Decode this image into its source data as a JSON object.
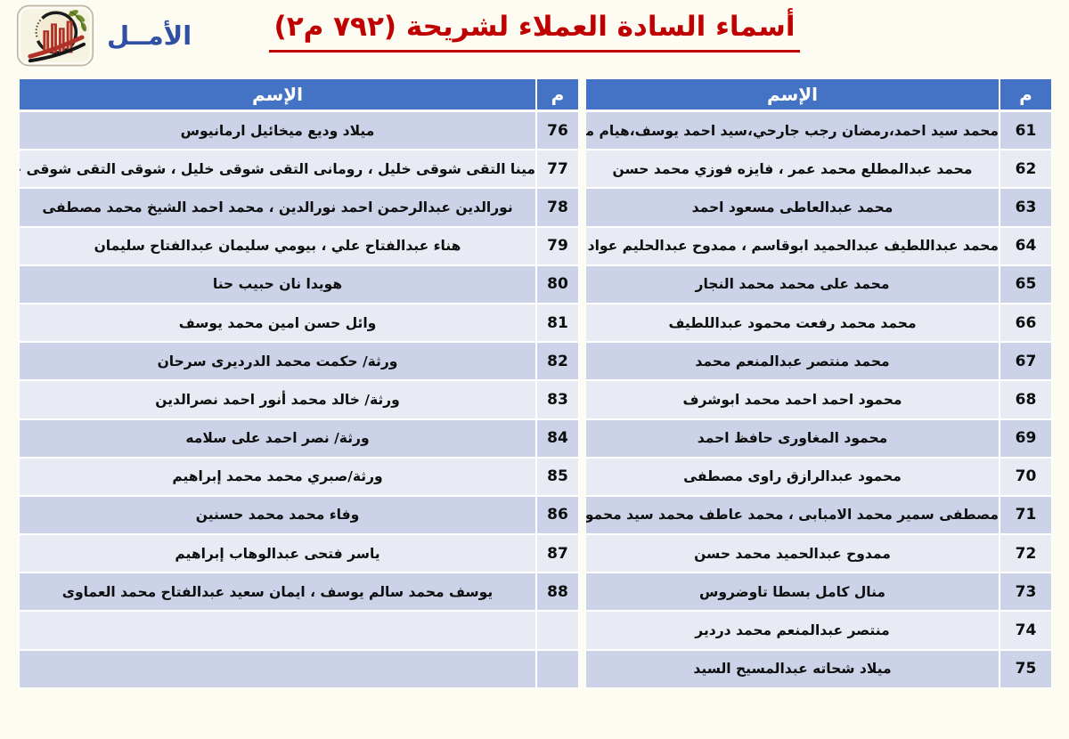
{
  "header": {
    "brand": "الأمــل",
    "title": "أسماء السادة العملاء لشريحة (٧٩٢ م٢)"
  },
  "table_headers": {
    "num": "م",
    "name": "الإسم"
  },
  "colors": {
    "title_red": "#c00000",
    "brand_blue": "#2e4fa3",
    "header_bg": "#4472c4",
    "row_dark": "#ccd3e8",
    "row_light": "#e9ebf4"
  },
  "icons": {
    "logo": "amal-university-logo"
  },
  "first_table": {
    "rows": [
      {
        "num": "61",
        "name": "محمد سيد احمد،رمضان رجب جارحي،سيد احمد يوسف،هيام محمد صلاح"
      },
      {
        "num": "62",
        "name": "محمد عبدالمطلع محمد عمر ، فايزه فوزي محمد حسن"
      },
      {
        "num": "63",
        "name": "محمد عبدالعاطى مسعود احمد"
      },
      {
        "num": "64",
        "name": "محمد عبداللطيف عبدالحميد ابوقاسم ، ممدوح عبدالحليم عواد شرمه"
      },
      {
        "num": "65",
        "name": "محمد على محمد محمد النجار"
      },
      {
        "num": "66",
        "name": "محمد محمد رفعت محمود عبداللطيف"
      },
      {
        "num": "67",
        "name": "محمد منتصر عبدالمنعم محمد"
      },
      {
        "num": "68",
        "name": "محمود احمد احمد محمد ابوشرف"
      },
      {
        "num": "69",
        "name": "محمود المغاورى حافظ احمد"
      },
      {
        "num": "70",
        "name": "محمود عبدالرازق راوى مصطفى"
      },
      {
        "num": "71",
        "name": "مصطفى سمير محمد الامبابى ، محمد عاطف محمد سيد محمود بحيرى"
      },
      {
        "num": "72",
        "name": "ممدوح عبدالحميد محمد حسن"
      },
      {
        "num": "73",
        "name": "منال كامل بسطا تاوضروس"
      },
      {
        "num": "74",
        "name": "منتصر عبدالمنعم محمد دردير"
      },
      {
        "num": "75",
        "name": "ميلاد شحاته عبدالمسيح السيد"
      }
    ]
  },
  "second_table": {
    "rows": [
      {
        "num": "76",
        "name": "ميلاد وديع ميخائيل ارمانيوس"
      },
      {
        "num": "77",
        "name": "مينا التقى شوقى خليل ، رومانى التقى شوقى خليل ، شوقى التقى شوقى خليل"
      },
      {
        "num": "78",
        "name": "نورالدين عبدالرحمن احمد نورالدين ، محمد احمد الشيخ محمد مصطفى"
      },
      {
        "num": "79",
        "name": "هناء عبدالفتاح علي  ، بيومي سليمان عبدالفتاح سليمان"
      },
      {
        "num": "80",
        "name": "هويدا نان حبيب حنا"
      },
      {
        "num": "81",
        "name": "وائل حسن امين محمد يوسف"
      },
      {
        "num": "82",
        "name": "ورثة/ حكمت محمد الدرديرى سرحان"
      },
      {
        "num": "83",
        "name": "ورثة/ خالد محمد أنور احمد نصرالدين"
      },
      {
        "num": "84",
        "name": "ورثة/ نصر احمد على سلامه"
      },
      {
        "num": "85",
        "name": "ورثة/صبري محمد محمد إبراهيم"
      },
      {
        "num": "86",
        "name": "وفاء محمد محمد حسنين"
      },
      {
        "num": "87",
        "name": "ياسر فتحى عبدالوهاب إبراهيم"
      },
      {
        "num": "88",
        "name": "يوسف محمد سالم يوسف ، ايمان سعيد عبدالفتاح محمد العماوى"
      },
      {
        "num": "",
        "name": ""
      },
      {
        "num": "",
        "name": ""
      }
    ]
  }
}
